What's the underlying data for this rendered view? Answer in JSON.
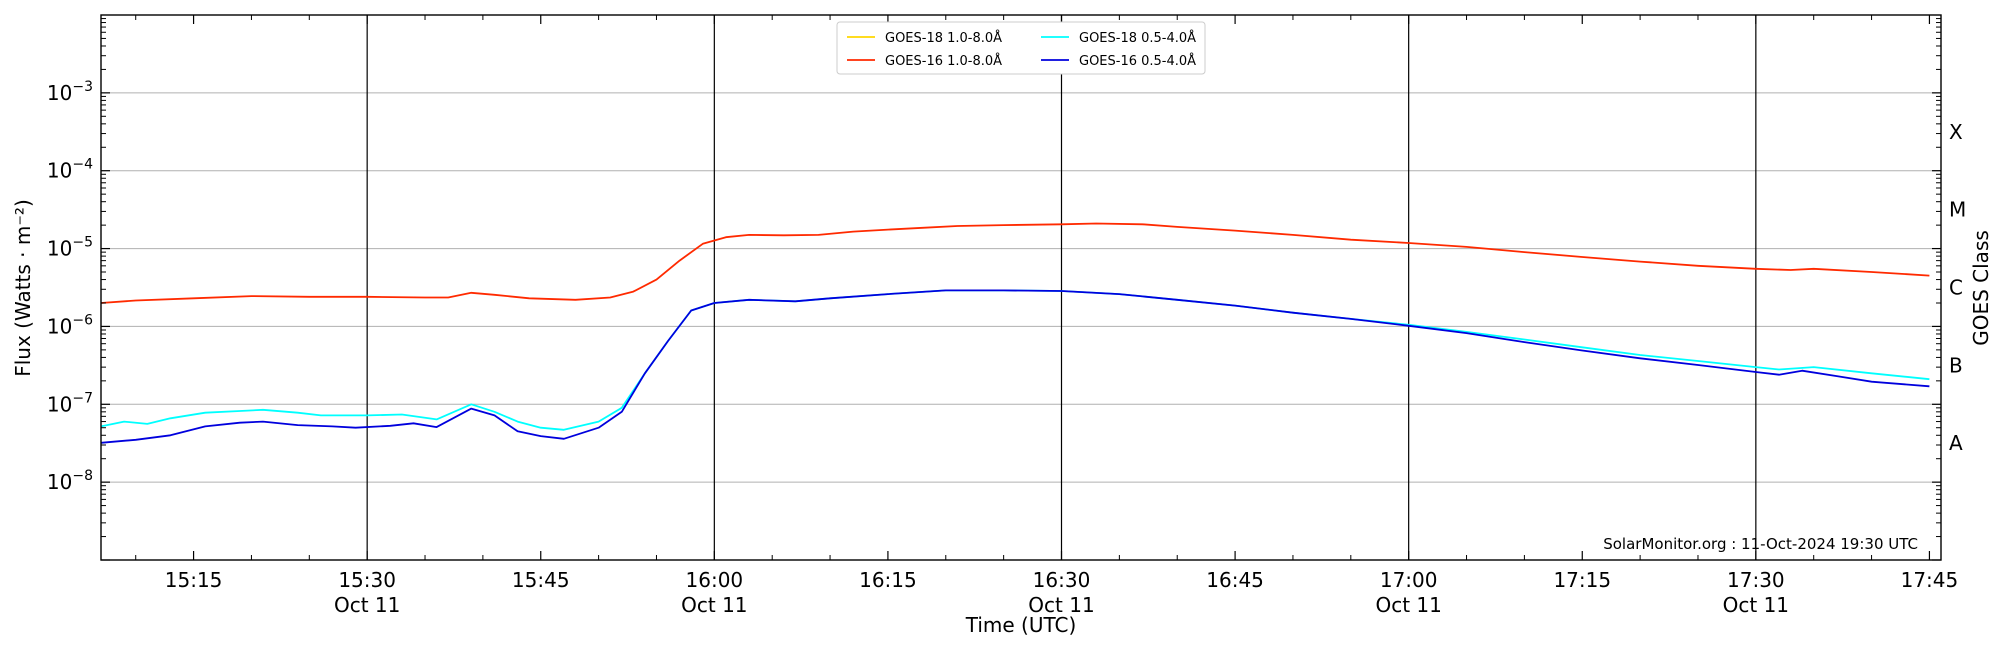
{
  "chart_data": {
    "type": "line",
    "title": "",
    "xlabel": "Time (UTC)",
    "ylabel": "Flux (Watts · m⁻²)",
    "y2label": "GOES Class",
    "yscale": "log",
    "ylim": [
      1e-09,
      0.01
    ],
    "xlim": [
      "15:07",
      "17:46"
    ],
    "xticks": [
      {
        "t": "15:15",
        "date": ""
      },
      {
        "t": "15:30",
        "date": "Oct 11"
      },
      {
        "t": "15:45",
        "date": ""
      },
      {
        "t": "16:00",
        "date": "Oct 11"
      },
      {
        "t": "16:15",
        "date": ""
      },
      {
        "t": "16:30",
        "date": "Oct 11"
      },
      {
        "t": "16:45",
        "date": ""
      },
      {
        "t": "17:00",
        "date": "Oct 11"
      },
      {
        "t": "17:15",
        "date": ""
      },
      {
        "t": "17:30",
        "date": "Oct 11"
      },
      {
        "t": "17:45",
        "date": ""
      }
    ],
    "yticks": [
      {
        "value": 1e-08,
        "base": "10",
        "exp": "−8"
      },
      {
        "value": 1e-07,
        "base": "10",
        "exp": "−7"
      },
      {
        "value": 1e-06,
        "base": "10",
        "exp": "−6"
      },
      {
        "value": 1e-05,
        "base": "10",
        "exp": "−5"
      },
      {
        "value": 0.0001,
        "base": "10",
        "exp": "−4"
      },
      {
        "value": 0.001,
        "base": "10",
        "exp": "−3"
      }
    ],
    "goes_classes": [
      {
        "label": "A",
        "value": 3.16e-08
      },
      {
        "label": "B",
        "value": 3.16e-07
      },
      {
        "label": "C",
        "value": 3.16e-06
      },
      {
        "label": "M",
        "value": 3.16e-05
      },
      {
        "label": "X",
        "value": 0.000316
      }
    ],
    "vlines": [
      "15:30",
      "16:00",
      "16:30",
      "17:00",
      "17:30"
    ],
    "grid": "horizontal",
    "legend_position": "top-center",
    "credit": "SolarMonitor.org : 11-Oct-2024 19:30 UTC",
    "series": [
      {
        "name": "GOES-18 1.0-8.0Å",
        "color": "#ffd700",
        "points": []
      },
      {
        "name": "GOES-16 1.0-8.0Å",
        "color": "#ff2a00",
        "points": [
          [
            "15:07",
            2e-06
          ],
          [
            "15:10",
            2.15e-06
          ],
          [
            "15:15",
            2.3e-06
          ],
          [
            "15:20",
            2.45e-06
          ],
          [
            "15:25",
            2.4e-06
          ],
          [
            "15:30",
            2.4e-06
          ],
          [
            "15:35",
            2.35e-06
          ],
          [
            "15:37",
            2.35e-06
          ],
          [
            "15:39",
            2.7e-06
          ],
          [
            "15:41",
            2.55e-06
          ],
          [
            "15:44",
            2.3e-06
          ],
          [
            "15:48",
            2.2e-06
          ],
          [
            "15:51",
            2.35e-06
          ],
          [
            "15:53",
            2.8e-06
          ],
          [
            "15:55",
            4e-06
          ],
          [
            "15:57",
            7e-06
          ],
          [
            "15:59",
            1.15e-05
          ],
          [
            "16:01",
            1.4e-05
          ],
          [
            "16:03",
            1.5e-05
          ],
          [
            "16:06",
            1.48e-05
          ],
          [
            "16:09",
            1.5e-05
          ],
          [
            "16:12",
            1.65e-05
          ],
          [
            "16:15",
            1.75e-05
          ],
          [
            "16:18",
            1.85e-05
          ],
          [
            "16:21",
            1.95e-05
          ],
          [
            "16:25",
            2e-05
          ],
          [
            "16:30",
            2.05e-05
          ],
          [
            "16:33",
            2.1e-05
          ],
          [
            "16:37",
            2.05e-05
          ],
          [
            "16:40",
            1.9e-05
          ],
          [
            "16:45",
            1.7e-05
          ],
          [
            "16:50",
            1.5e-05
          ],
          [
            "16:55",
            1.3e-05
          ],
          [
            "17:00",
            1.18e-05
          ],
          [
            "17:05",
            1.05e-05
          ],
          [
            "17:10",
            9e-06
          ],
          [
            "17:15",
            7.8e-06
          ],
          [
            "17:20",
            6.8e-06
          ],
          [
            "17:25",
            6e-06
          ],
          [
            "17:30",
            5.5e-06
          ],
          [
            "17:33",
            5.3e-06
          ],
          [
            "17:35",
            5.5e-06
          ],
          [
            "17:40",
            5e-06
          ],
          [
            "17:45",
            4.5e-06
          ]
        ]
      },
      {
        "name": "GOES-18 0.5-4.0Å",
        "color": "#00ffff",
        "points": [
          [
            "15:07",
            5.2e-08
          ],
          [
            "15:09",
            6e-08
          ],
          [
            "15:11",
            5.6e-08
          ],
          [
            "15:13",
            6.6e-08
          ],
          [
            "15:16",
            7.8e-08
          ],
          [
            "15:19",
            8.2e-08
          ],
          [
            "15:21",
            8.5e-08
          ],
          [
            "15:24",
            7.8e-08
          ],
          [
            "15:26",
            7.2e-08
          ],
          [
            "15:30",
            7.2e-08
          ],
          [
            "15:33",
            7.4e-08
          ],
          [
            "15:36",
            6.4e-08
          ],
          [
            "15:39",
            1e-07
          ],
          [
            "15:41",
            8e-08
          ],
          [
            "15:43",
            6e-08
          ],
          [
            "15:45",
            5e-08
          ],
          [
            "15:47",
            4.7e-08
          ],
          [
            "15:50",
            6e-08
          ],
          [
            "15:52",
            9e-08
          ],
          [
            "15:54",
            2.5e-07
          ],
          [
            "15:56",
            6.5e-07
          ],
          [
            "15:58",
            1.6e-06
          ],
          [
            "16:00",
            2e-06
          ],
          [
            "16:03",
            2.2e-06
          ],
          [
            "16:07",
            2.1e-06
          ],
          [
            "16:10",
            2.3e-06
          ],
          [
            "16:15",
            2.6e-06
          ],
          [
            "16:20",
            2.9e-06
          ],
          [
            "16:25",
            2.9e-06
          ],
          [
            "16:30",
            2.85e-06
          ],
          [
            "16:35",
            2.6e-06
          ],
          [
            "16:40",
            2.2e-06
          ],
          [
            "16:45",
            1.85e-06
          ],
          [
            "16:50",
            1.5e-06
          ],
          [
            "16:55",
            1.25e-06
          ],
          [
            "17:00",
            1.05e-06
          ],
          [
            "17:05",
            8.5e-07
          ],
          [
            "17:10",
            6.8e-07
          ],
          [
            "17:15",
            5.4e-07
          ],
          [
            "17:20",
            4.3e-07
          ],
          [
            "17:25",
            3.6e-07
          ],
          [
            "17:30",
            3e-07
          ],
          [
            "17:32",
            2.8e-07
          ],
          [
            "17:35",
            3e-07
          ],
          [
            "17:40",
            2.5e-07
          ],
          [
            "17:45",
            2.1e-07
          ]
        ]
      },
      {
        "name": "GOES-16 0.5-4.0Å",
        "color": "#0000dd",
        "points": [
          [
            "15:07",
            3.2e-08
          ],
          [
            "15:10",
            3.5e-08
          ],
          [
            "15:13",
            4e-08
          ],
          [
            "15:16",
            5.2e-08
          ],
          [
            "15:19",
            5.8e-08
          ],
          [
            "15:21",
            6e-08
          ],
          [
            "15:24",
            5.4e-08
          ],
          [
            "15:27",
            5.2e-08
          ],
          [
            "15:29",
            5e-08
          ],
          [
            "15:32",
            5.3e-08
          ],
          [
            "15:34",
            5.7e-08
          ],
          [
            "15:36",
            5.1e-08
          ],
          [
            "15:39",
            8.8e-08
          ],
          [
            "15:41",
            7.2e-08
          ],
          [
            "15:43",
            4.5e-08
          ],
          [
            "15:45",
            3.9e-08
          ],
          [
            "15:47",
            3.6e-08
          ],
          [
            "15:50",
            5e-08
          ],
          [
            "15:52",
            8e-08
          ],
          [
            "15:54",
            2.5e-07
          ],
          [
            "15:56",
            6.5e-07
          ],
          [
            "15:58",
            1.6e-06
          ],
          [
            "16:00",
            2e-06
          ],
          [
            "16:03",
            2.2e-06
          ],
          [
            "16:07",
            2.1e-06
          ],
          [
            "16:10",
            2.3e-06
          ],
          [
            "16:15",
            2.6e-06
          ],
          [
            "16:20",
            2.9e-06
          ],
          [
            "16:25",
            2.9e-06
          ],
          [
            "16:30",
            2.85e-06
          ],
          [
            "16:35",
            2.6e-06
          ],
          [
            "16:40",
            2.2e-06
          ],
          [
            "16:45",
            1.85e-06
          ],
          [
            "16:50",
            1.5e-06
          ],
          [
            "16:55",
            1.25e-06
          ],
          [
            "17:00",
            1.02e-06
          ],
          [
            "17:05",
            8.2e-07
          ],
          [
            "17:10",
            6.3e-07
          ],
          [
            "17:15",
            4.9e-07
          ],
          [
            "17:20",
            3.9e-07
          ],
          [
            "17:25",
            3.2e-07
          ],
          [
            "17:30",
            2.6e-07
          ],
          [
            "17:32",
            2.4e-07
          ],
          [
            "17:34",
            2.7e-07
          ],
          [
            "17:37",
            2.3e-07
          ],
          [
            "17:40",
            1.95e-07
          ],
          [
            "17:45",
            1.7e-07
          ]
        ]
      }
    ]
  }
}
